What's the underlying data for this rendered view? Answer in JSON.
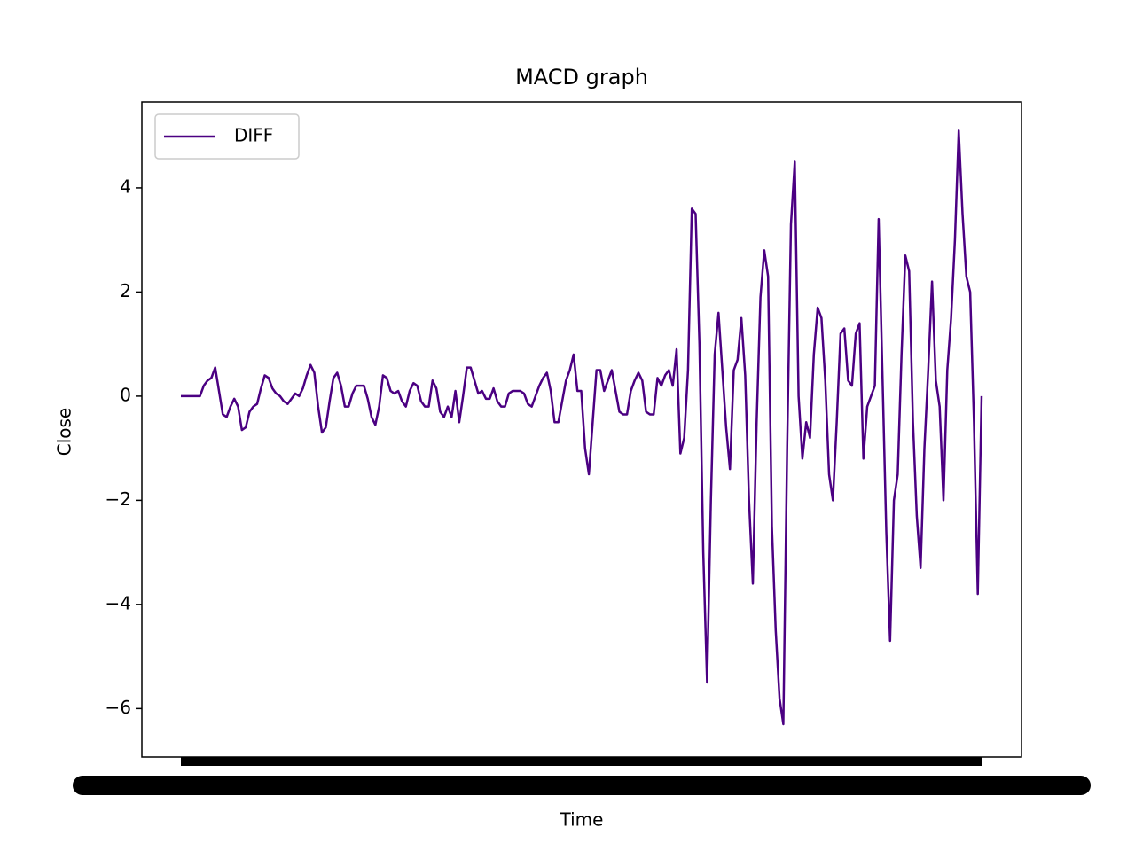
{
  "chart_data": {
    "type": "line",
    "title": "MACD graph",
    "x_label": "Time",
    "y_label": "Close",
    "ylim": [
      -6.93,
      5.65
    ],
    "yticks": [
      {
        "value": -6,
        "label": "−6"
      },
      {
        "value": -4,
        "label": "−4"
      },
      {
        "value": -2,
        "label": "−2"
      },
      0,
      2,
      4
    ],
    "legend": "upper left",
    "series": [
      {
        "name": "DIFF",
        "color": "#4b0082",
        "values": [
          0,
          0,
          0,
          0,
          0,
          0,
          0.2,
          0.3,
          0.35,
          0.55,
          0.1,
          -0.35,
          -0.4,
          -0.2,
          -0.05,
          -0.2,
          -0.65,
          -0.6,
          -0.3,
          -0.2,
          -0.15,
          0.15,
          0.4,
          0.35,
          0.15,
          0.05,
          0,
          -0.1,
          -0.15,
          -0.05,
          0.05,
          0,
          0.15,
          0.4,
          0.6,
          0.45,
          -0.2,
          -0.7,
          -0.6,
          -0.1,
          0.35,
          0.45,
          0.2,
          -0.2,
          -0.2,
          0.05,
          0.2,
          0.2,
          0.2,
          -0.05,
          -0.4,
          -0.55,
          -0.2,
          0.4,
          0.35,
          0.1,
          0.05,
          0.1,
          -0.1,
          -0.2,
          0.1,
          0.25,
          0.2,
          -0.1,
          -0.2,
          -0.2,
          0.3,
          0.15,
          -0.3,
          -0.4,
          -0.2,
          -0.4,
          0.1,
          -0.5,
          0,
          0.55,
          0.55,
          0.3,
          0.05,
          0.1,
          -0.05,
          -0.05,
          0.15,
          -0.1,
          -0.2,
          -0.2,
          0.05,
          0.1,
          0.1,
          0.1,
          0.05,
          -0.15,
          -0.2,
          0,
          0.2,
          0.35,
          0.45,
          0.1,
          -0.5,
          -0.5,
          -0.1,
          0.3,
          0.5,
          0.8,
          0.1,
          0.1,
          -1,
          -1.5,
          -0.5,
          0.5,
          0.5,
          0.1,
          0.3,
          0.5,
          0.1,
          -0.3,
          -0.35,
          -0.35,
          0.1,
          0.3,
          0.45,
          0.3,
          -0.3,
          -0.35,
          -0.35,
          0.35,
          0.2,
          0.4,
          0.5,
          0.2,
          0.9,
          -1.1,
          -0.8,
          0.5,
          3.6,
          3.5,
          1,
          -3,
          -5.5,
          -2,
          0.8,
          1.6,
          0.5,
          -0.6,
          -1.4,
          0.5,
          0.7,
          1.5,
          0.4,
          -2,
          -3.6,
          -0.5,
          1.9,
          2.8,
          2.3,
          -2.5,
          -4.5,
          -5.8,
          -6.3,
          -1,
          3.3,
          4.5,
          0,
          -1.2,
          -0.5,
          -0.8,
          0.8,
          1.7,
          1.5,
          0.3,
          -1.5,
          -2,
          -0.5,
          1.2,
          1.3,
          0.3,
          0.2,
          1.2,
          1.4,
          -1.2,
          -0.2,
          0,
          0.2,
          3.4,
          0.4,
          -2.6,
          -4.7,
          -2,
          -1.5,
          0.8,
          2.7,
          2.4,
          -0.5,
          -2.3,
          -3.3,
          -1,
          0.5,
          2.2,
          0.3,
          -0.2,
          -2,
          0.5,
          1.5,
          3,
          5.1,
          3.5,
          2.3,
          2,
          -0.5,
          -3.8,
          0
        ]
      }
    ]
  }
}
